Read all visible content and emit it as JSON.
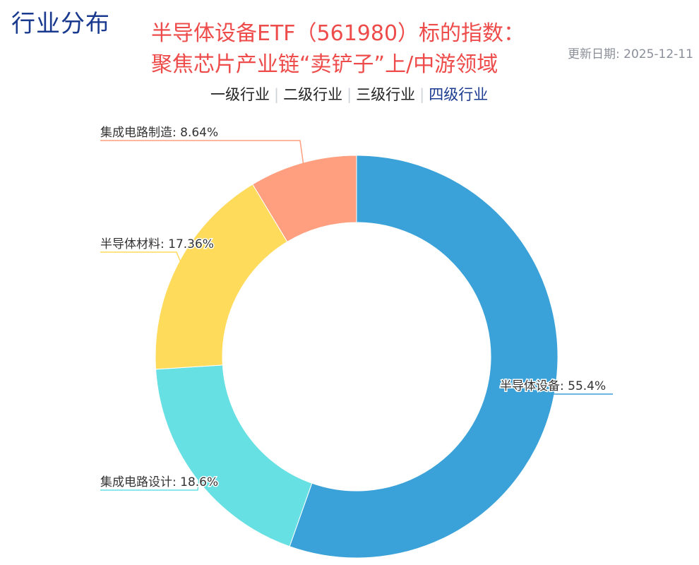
{
  "page": {
    "section_title": "行业分布",
    "headline_line1": "半导体设备ETF（561980）标的指数：",
    "headline_line2": "聚焦芯片产业链“卖铲子”上/中游领域",
    "update_date": "更新日期: 2025-12-11"
  },
  "tabs": [
    {
      "label": "一级行业",
      "active": false
    },
    {
      "label": "二级行业",
      "active": false
    },
    {
      "label": "三级行业",
      "active": false
    },
    {
      "label": "四级行业",
      "active": true
    }
  ],
  "chart_data": {
    "type": "pie",
    "style": "donut",
    "slices": [
      {
        "name": "半导体设备",
        "value": 55.4,
        "label": "半导体设备: 55.4%",
        "color": "#3aa2d9"
      },
      {
        "name": "集成电路设计",
        "value": 18.6,
        "label": "集成电路设计: 18.6%",
        "color": "#67e0e3"
      },
      {
        "name": "半导体材料",
        "value": 17.36,
        "label": "半导体材料: 17.36%",
        "color": "#ffdb5c"
      },
      {
        "name": "集成电路制造",
        "value": 8.64,
        "label": "集成电路制造: 8.64%",
        "color": "#ff9f7f"
      }
    ]
  }
}
